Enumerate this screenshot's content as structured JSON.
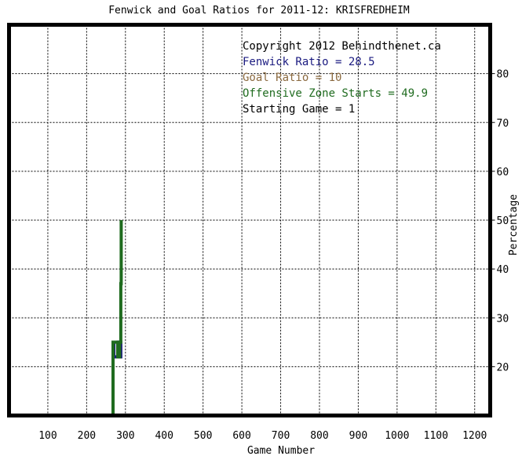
{
  "chart_data": {
    "type": "line",
    "title": "Fenwick and Goal Ratios for 2011-12: KRISFREDHEIM",
    "xlabel": "Game Number",
    "ylabel": "Percentage",
    "xlim": [
      0,
      1240
    ],
    "ylim": [
      10,
      90
    ],
    "x_ticks": [
      100,
      200,
      300,
      400,
      500,
      600,
      700,
      800,
      900,
      1000,
      1100,
      1200
    ],
    "y_ticks": [
      20,
      30,
      40,
      50,
      60,
      70,
      80
    ],
    "grid": true,
    "y_axis_side": "right",
    "annotations": [
      {
        "text": "Copyright 2012 Behindthenet.ca",
        "color": "#000000"
      },
      {
        "text": "Fenwick Ratio = 28.5",
        "color": "#1a1a80"
      },
      {
        "text": "Goal Ratio = 10",
        "color": "#8b6a40"
      },
      {
        "text": "Offensive Zone Starts = 49.9",
        "color": "#1f6b1f"
      },
      {
        "text": "Starting Game = 1",
        "color": "#000000"
      }
    ],
    "series": [
      {
        "color": "#1a1a80",
        "x": [
          270,
          270,
          288,
          288,
          281,
          281
        ],
        "y": [
          25,
          22,
          22,
          25,
          25,
          22
        ]
      },
      {
        "color": "#1f6b1f",
        "x": [
          268,
          268,
          280,
          280,
          285,
          285,
          288,
          288,
          289,
          289
        ],
        "y": [
          10,
          25,
          25,
          22,
          22,
          25,
          25,
          37,
          37,
          50
        ]
      }
    ]
  }
}
